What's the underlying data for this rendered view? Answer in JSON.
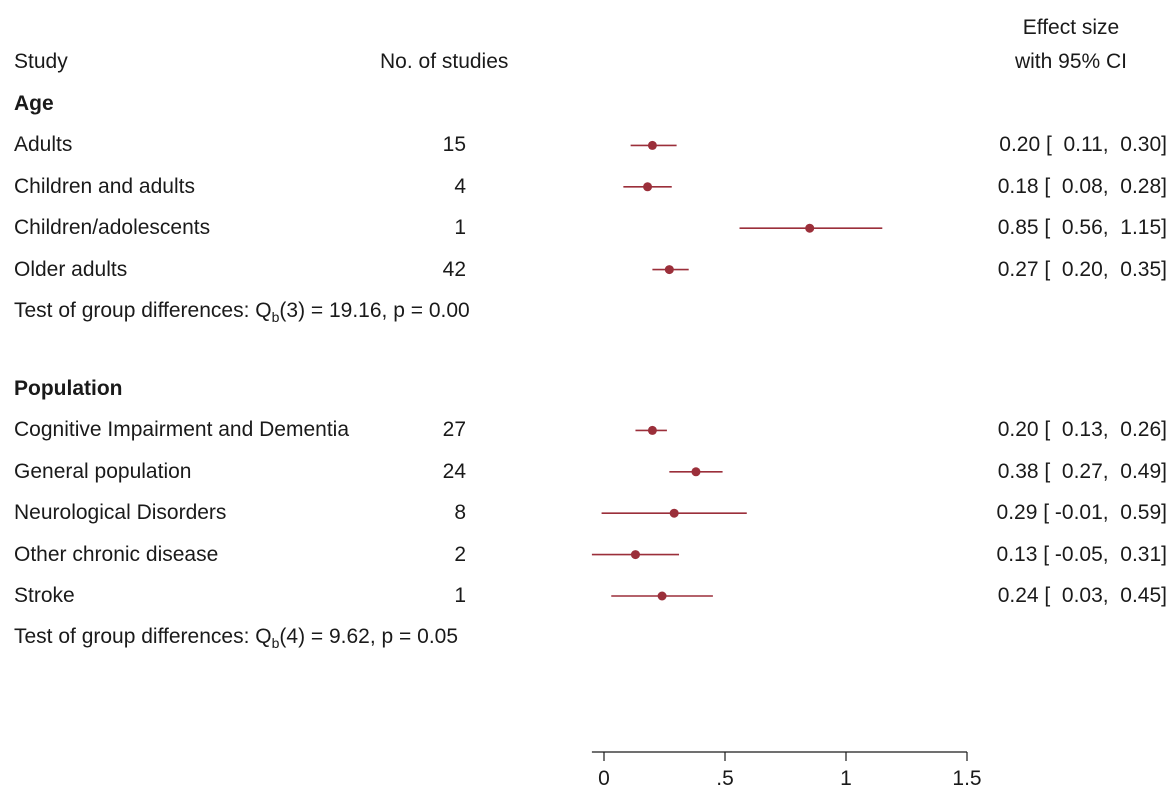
{
  "header": {
    "study": "Study",
    "n": "No. of studies",
    "es_line1": "Effect size",
    "es_line2": "with 95% CI"
  },
  "groups": [
    {
      "title": "Age",
      "rows": [
        {
          "label": "Adults",
          "n": "15",
          "est": 0.2,
          "lo": 0.11,
          "hi": 0.3,
          "ci": "0.20 [  0.11,  0.30]"
        },
        {
          "label": "Children and adults",
          "n": "4",
          "est": 0.18,
          "lo": 0.08,
          "hi": 0.28,
          "ci": "0.18 [  0.08,  0.28]"
        },
        {
          "label": "Children/adolescents",
          "n": "1",
          "est": 0.85,
          "lo": 0.56,
          "hi": 1.15,
          "ci": "0.85 [  0.56,  1.15]"
        },
        {
          "label": "Older adults",
          "n": "42",
          "est": 0.27,
          "lo": 0.2,
          "hi": 0.35,
          "ci": "0.27 [  0.20,  0.35]"
        }
      ],
      "test": "Test of group differences: Q",
      "test_sub": "b",
      "test_rest": "(3) = 19.16, p = 0.00"
    },
    {
      "title": "Population",
      "rows": [
        {
          "label": "Cognitive Impairment and Dementia",
          "n": "27",
          "est": 0.2,
          "lo": 0.13,
          "hi": 0.26,
          "ci": "0.20 [  0.13,  0.26]"
        },
        {
          "label": "General population",
          "n": "24",
          "est": 0.38,
          "lo": 0.27,
          "hi": 0.49,
          "ci": "0.38 [  0.27,  0.49]"
        },
        {
          "label": "Neurological Disorders",
          "n": "8",
          "est": 0.29,
          "lo": -0.01,
          "hi": 0.59,
          "ci": "0.29 [ -0.01,  0.59]"
        },
        {
          "label": "Other chronic disease",
          "n": "2",
          "est": 0.13,
          "lo": -0.05,
          "hi": 0.31,
          "ci": "0.13 [ -0.05,  0.31]"
        },
        {
          "label": "Stroke",
          "n": "1",
          "est": 0.24,
          "lo": 0.03,
          "hi": 0.45,
          "ci": "0.24 [  0.03,  0.45]"
        }
      ],
      "test": "Test of group differences: Q",
      "test_sub": "b",
      "test_rest": "(4) = 9.62, p = 0.05"
    }
  ],
  "chart_data": {
    "type": "scatter",
    "subtype": "forest-plot",
    "xlim": [
      -0.05,
      1.5
    ],
    "xticks": [
      0,
      0.5,
      1,
      1.5
    ],
    "xtick_labels": [
      "0",
      ".5",
      "1",
      "1.5"
    ],
    "marker_color": "#9b2f3a",
    "series": [
      {
        "values": [
          {
            "category": "Adults",
            "x": 0.2,
            "lo": 0.11,
            "hi": 0.3
          },
          {
            "category": "Children and adults",
            "x": 0.18,
            "lo": 0.08,
            "hi": 0.28
          },
          {
            "category": "Children/adolescents",
            "x": 0.85,
            "lo": 0.56,
            "hi": 1.15
          },
          {
            "category": "Older adults",
            "x": 0.27,
            "lo": 0.2,
            "hi": 0.35
          },
          {
            "category": "Cognitive Impairment and Dementia",
            "x": 0.2,
            "lo": 0.13,
            "hi": 0.26
          },
          {
            "category": "General population",
            "x": 0.38,
            "lo": 0.27,
            "hi": 0.49
          },
          {
            "category": "Neurological Disorders",
            "x": 0.29,
            "lo": -0.01,
            "hi": 0.59
          },
          {
            "category": "Other chronic disease",
            "x": 0.13,
            "lo": -0.05,
            "hi": 0.31
          },
          {
            "category": "Stroke",
            "x": 0.24,
            "lo": 0.03,
            "hi": 0.45
          }
        ]
      }
    ]
  }
}
